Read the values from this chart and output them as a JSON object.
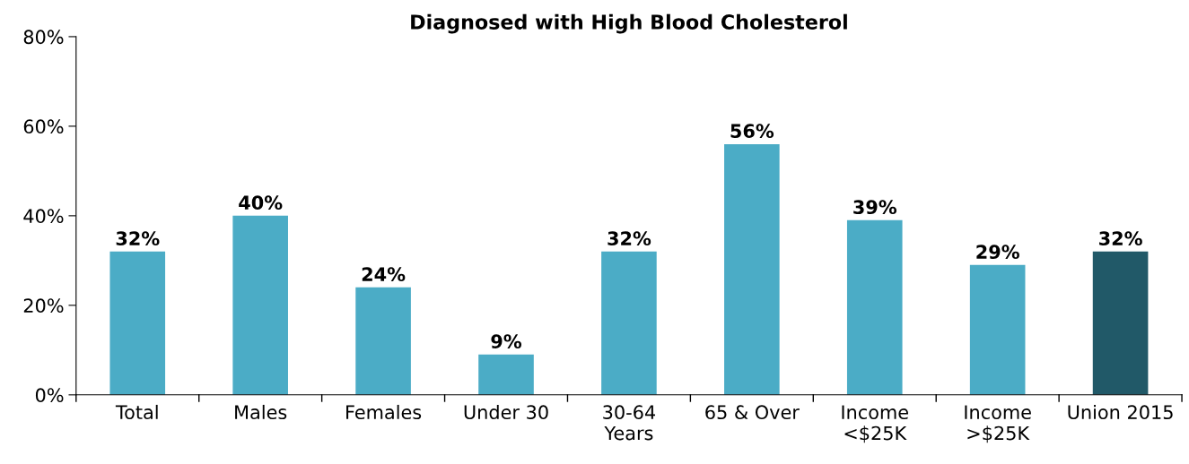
{
  "chart_data": {
    "type": "bar",
    "title": "Diagnosed with High Blood Cholesterol",
    "categories": [
      "Total",
      "Males",
      "Females",
      "Under 30",
      "30-64\nYears",
      "65 & Over",
      "Income\n<$25K",
      "Income\n>$25K",
      "Union 2015"
    ],
    "values": [
      32,
      40,
      24,
      9,
      32,
      56,
      39,
      29,
      32
    ],
    "colors": [
      "#4bacc6",
      "#4bacc6",
      "#4bacc6",
      "#4bacc6",
      "#4bacc6",
      "#4bacc6",
      "#4bacc6",
      "#4bacc6",
      "#215968"
    ],
    "value_labels": [
      "32%",
      "40%",
      "24%",
      "9%",
      "32%",
      "56%",
      "39%",
      "29%",
      "32%"
    ],
    "ylim": [
      0,
      80
    ],
    "yticks": [
      {
        "value": 0,
        "label": "0%"
      },
      {
        "value": 20,
        "label": "20%"
      },
      {
        "value": 40,
        "label": "40%"
      },
      {
        "value": 60,
        "label": "60%"
      },
      {
        "value": 80,
        "label": "80%"
      }
    ],
    "grid": false
  }
}
